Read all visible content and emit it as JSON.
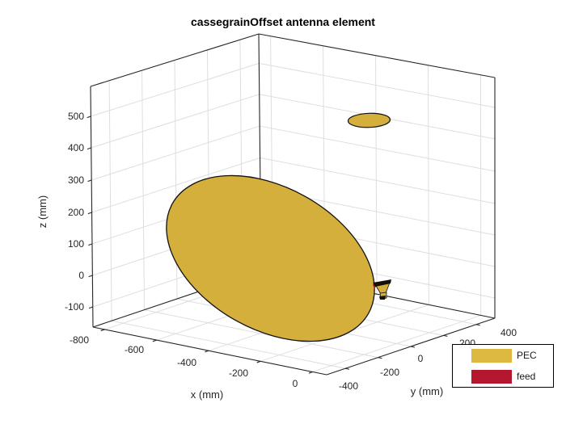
{
  "title": "cassegrainOffset antenna element",
  "axes": {
    "x": {
      "label": "x (mm)",
      "ticks": [
        "-800",
        "-600",
        "-400",
        "-200",
        "0"
      ]
    },
    "y": {
      "label": "y (mm)",
      "ticks": [
        "-400",
        "-200",
        "0",
        "200",
        "400"
      ]
    },
    "z": {
      "label": "z (mm)",
      "ticks": [
        "-100",
        "0",
        "100",
        "200",
        "300",
        "400",
        "500"
      ]
    }
  },
  "legend": {
    "items": [
      {
        "label": "PEC",
        "color": "#DDB942"
      },
      {
        "label": "feed",
        "color": "#B5172E"
      }
    ]
  },
  "colors": {
    "pec_surface": "#D5AF3C",
    "surface_outline": "#111111",
    "feed": "#B5172E",
    "grid": "#DEDEDE",
    "box_edge": "#262626",
    "tick_text": "#262626",
    "background": "#FFFFFF"
  },
  "chart_data": {
    "type": "3d-geometry",
    "title": "cassegrainOffset antenna element",
    "xlabel": "x (mm)",
    "ylabel": "y (mm)",
    "zlabel": "z (mm)",
    "xticks": [
      -800,
      -600,
      -400,
      -200,
      0
    ],
    "yticks": [
      -400,
      -200,
      0,
      200,
      400
    ],
    "zticks": [
      -100,
      0,
      100,
      200,
      300,
      400,
      500
    ],
    "xlim_approx": [
      -850,
      55
    ],
    "ylim_approx": [
      -515,
      515
    ],
    "zlim_approx": [
      -165,
      595
    ],
    "grid": true,
    "view": "3-D perspective box (MATLAB-style axes)",
    "legend_position": "lower-right",
    "elements": [
      {
        "name": "main reflector",
        "geometry": "large tilted elliptical dish",
        "color_key": "PEC",
        "approx_extent_mm": {
          "x": [
            -750,
            -80
          ],
          "z": [
            -110,
            310
          ]
        }
      },
      {
        "name": "subreflector",
        "geometry": "small flat ellipse near top right",
        "color_key": "PEC",
        "approx_position_mm": {
          "z": 500
        }
      },
      {
        "name": "feed horn",
        "geometry": "tiny cone with dark rim near origin",
        "color_key": "feed",
        "approx_position_mm": {
          "x": 0,
          "y": 0,
          "z": 0
        }
      }
    ]
  }
}
